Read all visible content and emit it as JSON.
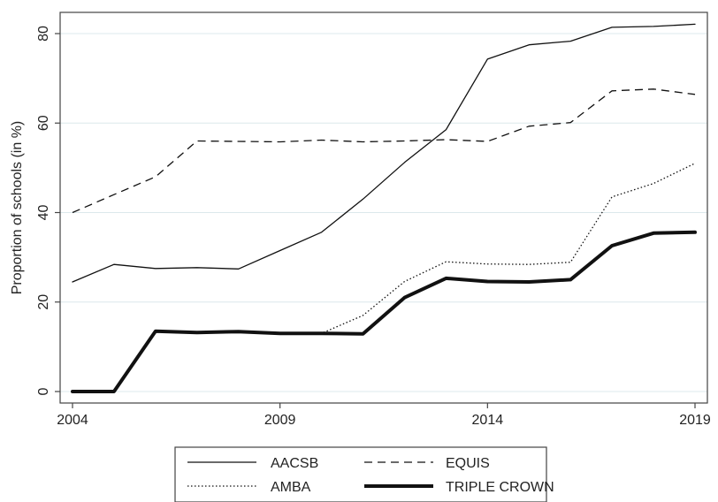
{
  "chart_data": {
    "type": "line",
    "xlabel": "",
    "ylabel": "Proportion of schools (in %)",
    "xlim": [
      2004,
      2019
    ],
    "ylim": [
      0,
      82
    ],
    "x_ticks": [
      2004,
      2009,
      2014,
      2019
    ],
    "y_ticks": [
      0,
      20,
      40,
      60,
      80
    ],
    "grid": "horizontal",
    "legend_position": "bottom",
    "x": [
      2004,
      2005,
      2006,
      2007,
      2008,
      2009,
      2010,
      2011,
      2012,
      2013,
      2014,
      2015,
      2016,
      2017,
      2018,
      2019
    ],
    "series": [
      {
        "name": "AACSB",
        "style": "solid",
        "width": 1.3,
        "values": [
          24.5,
          28.4,
          27.5,
          27.7,
          27.4,
          31.5,
          35.6,
          43.0,
          51.2,
          58.5,
          74.3,
          77.5,
          78.3,
          81.4,
          81.6,
          82.1
        ]
      },
      {
        "name": "EQUIS",
        "style": "dashed",
        "width": 1.3,
        "values": [
          40.0,
          44.0,
          48.0,
          56.0,
          55.9,
          55.8,
          56.2,
          55.8,
          56.0,
          56.3,
          55.9,
          59.3,
          60.1,
          67.2,
          67.6,
          66.4
        ]
      },
      {
        "name": "AMBA",
        "style": "dotted",
        "width": 1.3,
        "values": [
          0,
          0,
          13.5,
          13.2,
          13.4,
          13.0,
          13.0,
          17.0,
          24.6,
          29.0,
          28.5,
          28.4,
          28.9,
          43.5,
          46.5,
          51.0
        ]
      },
      {
        "name": "TRIPLE CROWN",
        "style": "solid",
        "width": 4,
        "values": [
          0,
          0,
          13.5,
          13.2,
          13.4,
          13.0,
          13.0,
          12.9,
          21.0,
          25.3,
          24.6,
          24.5,
          25.0,
          32.6,
          35.4,
          35.6
        ]
      }
    ]
  }
}
